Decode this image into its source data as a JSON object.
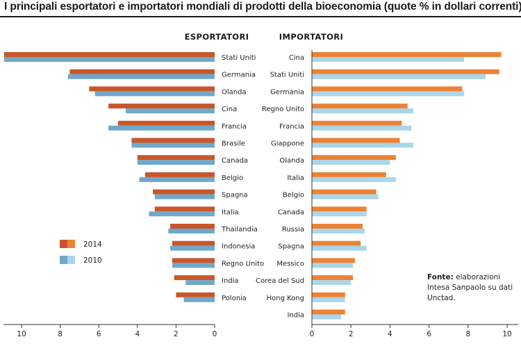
{
  "title": "I principali esportatori e importatori mondiali di prodotti della bioeconomia (quote % in dollari correnti)",
  "colors": {
    "export_2014": "#c9562a",
    "export_2010": "#6fa8c9",
    "import_2014": "#ec8235",
    "import_2010": "#a9d6ea",
    "axis": "#333333"
  },
  "legend": {
    "y2014": "2014",
    "y2010": "2010"
  },
  "source": {
    "bold": "Fonte:",
    "text": "elaborazioni Intesa Sanpaolo su dati Unctad."
  },
  "chart_data": [
    {
      "type": "bar",
      "orientation": "horizontal",
      "title": "ESPORTATORI",
      "categories": [
        "Stati Uniti",
        "Germania",
        "Olanda",
        "Cina",
        "Francia",
        "Brasile",
        "Canada",
        "Belgio",
        "Spagna",
        "Italia",
        "Thailandia",
        "Indonesia",
        "Regno Unito",
        "India",
        "Polonia"
      ],
      "series": [
        {
          "name": "2014",
          "values": [
            10.9,
            7.5,
            6.5,
            5.5,
            5.0,
            4.3,
            4.0,
            3.6,
            3.2,
            3.1,
            2.3,
            2.2,
            2.2,
            2.1,
            2.0
          ]
        },
        {
          "name": "2010",
          "values": [
            10.9,
            7.6,
            6.2,
            4.6,
            5.5,
            4.3,
            4.0,
            3.9,
            3.1,
            3.4,
            2.4,
            2.3,
            2.2,
            1.5,
            1.6
          ]
        }
      ],
      "xlim": [
        0,
        10.9
      ],
      "xticks": [
        10,
        8,
        6,
        4,
        2,
        0
      ],
      "reversed_axis": true,
      "grid": false
    },
    {
      "type": "bar",
      "orientation": "horizontal",
      "title": "IMPORTATORI",
      "categories": [
        "Cina",
        "Stati Uniti",
        "Germania",
        "Regno Unito",
        "Francia",
        "Giappone",
        "Olanda",
        "Italia",
        "Belgio",
        "Canada",
        "Russia",
        "Spagna",
        "Messico",
        "Corea del Sud",
        "Hong Kong",
        "India"
      ],
      "series": [
        {
          "name": "2014",
          "values": [
            9.7,
            9.6,
            7.7,
            4.9,
            4.6,
            4.5,
            4.3,
            3.8,
            3.3,
            2.8,
            2.6,
            2.5,
            2.2,
            2.1,
            1.7,
            1.7
          ]
        },
        {
          "name": "2010",
          "values": [
            7.8,
            8.9,
            7.8,
            5.2,
            5.1,
            5.2,
            4.0,
            4.3,
            3.4,
            2.8,
            2.7,
            2.8,
            2.1,
            2.0,
            1.7,
            1.5
          ]
        }
      ],
      "xlim": [
        0,
        10.5
      ],
      "xticks": [
        0,
        2,
        4,
        6,
        8,
        10
      ],
      "grid": false
    }
  ]
}
